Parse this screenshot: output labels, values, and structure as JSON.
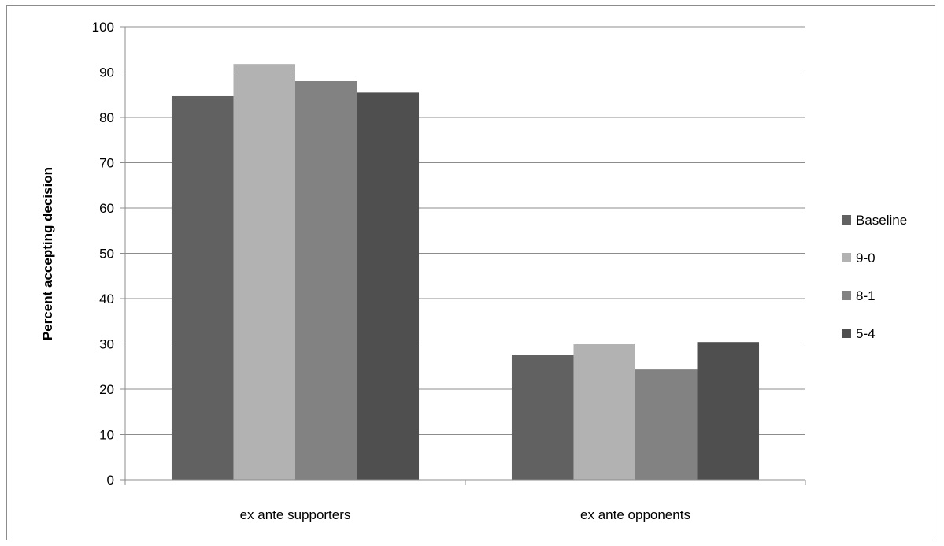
{
  "chart_data": {
    "type": "bar",
    "title": "",
    "xlabel": "",
    "ylabel": "Percent accepting decision",
    "categories": [
      "ex ante supporters",
      "ex ante opponents"
    ],
    "ylim": [
      0,
      100
    ],
    "yticks": [
      0,
      10,
      20,
      30,
      40,
      50,
      60,
      70,
      80,
      90,
      100
    ],
    "grid": true,
    "legend_position": "right",
    "series": [
      {
        "name": "Baseline",
        "values": [
          84.7,
          27.6
        ],
        "color": "#616161"
      },
      {
        "name": "9-0",
        "values": [
          91.8,
          30.0
        ],
        "color": "#b2b2b2"
      },
      {
        "name": "8-1",
        "values": [
          88.0,
          24.5
        ],
        "color": "#828282"
      },
      {
        "name": "5-4",
        "values": [
          85.5,
          30.4
        ],
        "color": "#4f4f4f"
      }
    ]
  }
}
